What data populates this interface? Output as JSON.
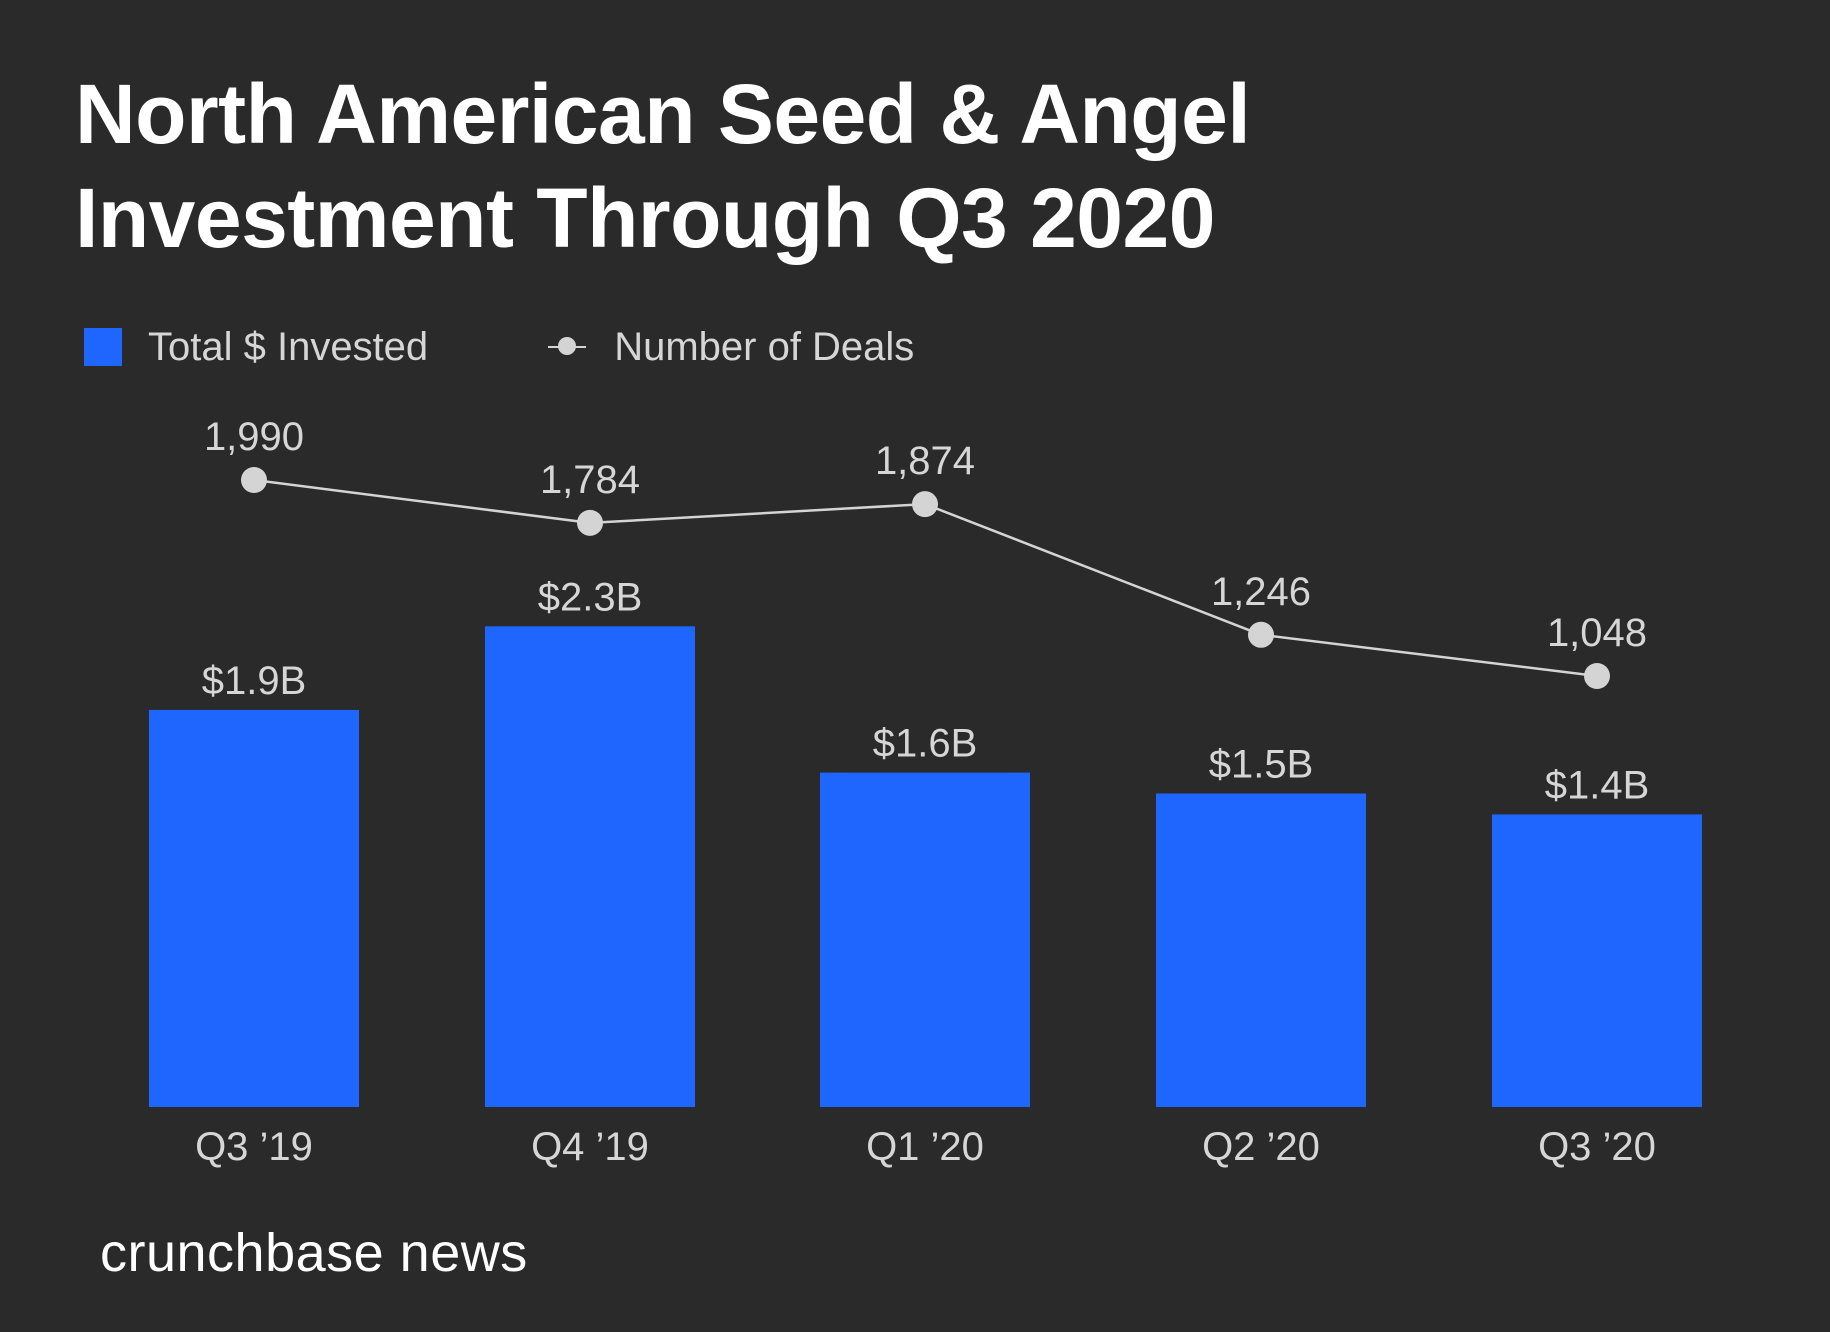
{
  "title_line1": "North American Seed & Angel",
  "title_line2": "Investment Through Q3 2020",
  "legend": {
    "bars_label": "Total $ Invested",
    "line_label": "Number of Deals"
  },
  "colors": {
    "background": "#2a2a2a",
    "bar": "#1f66ff",
    "line": "#d4d4d4",
    "text": "#d6d6d6"
  },
  "brand": "crunchbase news",
  "chart_data": {
    "type": "bar",
    "title": "North American Seed & Angel Investment Through Q3 2020",
    "categories": [
      "Q3 ’19",
      "Q4 ’19",
      "Q1 ’20",
      "Q2 ’20",
      "Q3 ’20"
    ],
    "series": [
      {
        "name": "Total $ Invested",
        "type": "bar",
        "unit": "USD billions",
        "values": [
          1.9,
          2.3,
          1.6,
          1.5,
          1.4
        ],
        "labels": [
          "$1.9B",
          "$2.3B",
          "$1.6B",
          "$1.5B",
          "$1.4B"
        ]
      },
      {
        "name": "Number of Deals",
        "type": "line",
        "values": [
          1990,
          1784,
          1874,
          1246,
          1048
        ],
        "labels": [
          "1,990",
          "1,784",
          "1,874",
          "1,246",
          "1,048"
        ]
      }
    ],
    "xlabel": "",
    "ylabel": "",
    "grid": false,
    "legend_position": "top-left"
  }
}
